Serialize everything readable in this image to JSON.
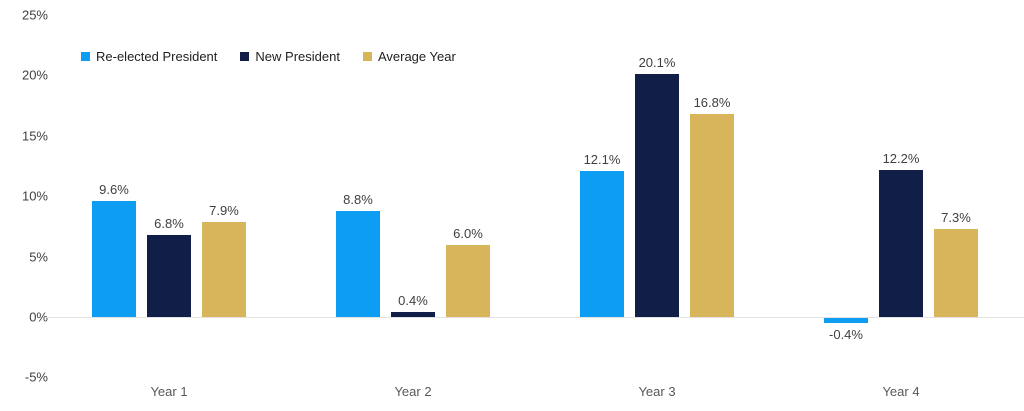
{
  "chart_data": {
    "type": "bar",
    "title": "",
    "xlabel": "",
    "ylabel": "",
    "categories": [
      "Year 1",
      "Year 2",
      "Year 3",
      "Year 4"
    ],
    "series": [
      {
        "name": "Re-elected President",
        "color": "#0d9df2",
        "values": [
          9.6,
          8.8,
          12.1,
          -0.4
        ]
      },
      {
        "name": "New President",
        "color": "#111f48",
        "values": [
          6.8,
          0.4,
          20.1,
          12.2
        ]
      },
      {
        "name": "Average Year",
        "color": "#d8b45a",
        "values": [
          7.9,
          6.0,
          16.8,
          7.3
        ]
      }
    ],
    "value_label_suffix": "%",
    "value_label_decimals": 1,
    "ylim": [
      -5,
      25
    ],
    "ytick_step": 5,
    "ytick_labels": [
      "25%",
      "20%",
      "15%",
      "10%",
      "5%",
      "0%",
      "-5%"
    ],
    "grid": false,
    "legend_position": "top-left",
    "colors": {
      "zero_line": "#e2e2e2",
      "value_label": "#404040",
      "axis_tick_label": "#404040",
      "category_label": "#595959",
      "legend_text": "#1f1f1f",
      "background": "#ffffff"
    }
  }
}
